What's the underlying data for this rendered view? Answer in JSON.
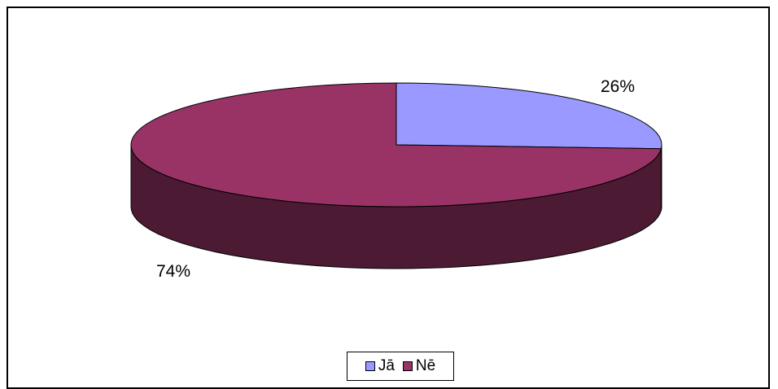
{
  "chart_data": {
    "type": "pie",
    "style": "3d",
    "series": [
      {
        "categories": [
          "Jā",
          "Nē"
        ],
        "values": [
          26,
          74
        ],
        "labels": [
          "26%",
          "74%"
        ]
      }
    ],
    "legend": {
      "placement": "bottom",
      "entries": [
        "Jā",
        "Nē"
      ]
    },
    "colors": {
      "Jā": "#9999FF",
      "Nē": "#993366",
      "Nē_side": "#4C1A33",
      "Jā_side": "#4C4C80"
    }
  }
}
